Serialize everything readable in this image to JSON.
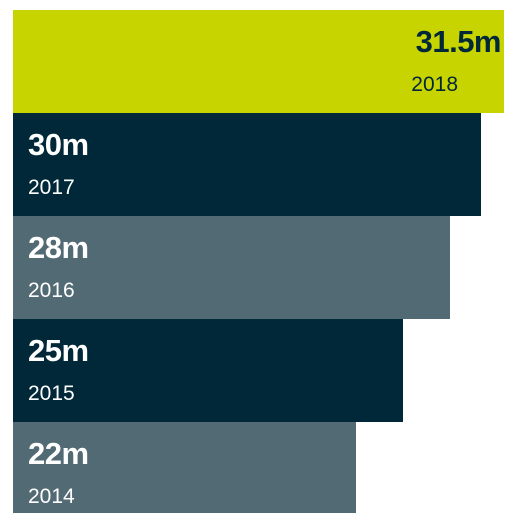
{
  "chart_data": {
    "type": "bar",
    "orientation": "horizontal",
    "categories": [
      "2018",
      "2017",
      "2016",
      "2015",
      "2014"
    ],
    "values": [
      31.5,
      30,
      28,
      25,
      22
    ],
    "value_labels": [
      "31.5m",
      "30m",
      "28m",
      "25m",
      "22m"
    ],
    "title": "",
    "xlabel": "",
    "ylabel": "",
    "unit": "m",
    "xlim": [
      0,
      32
    ],
    "grid": false,
    "colors": [
      "#c8d400",
      "#002838",
      "#526a74",
      "#002838",
      "#526a74"
    ],
    "text_colors": [
      "#002838",
      "#ffffff",
      "#ffffff",
      "#ffffff",
      "#ffffff"
    ],
    "label_colors": [
      "#002838",
      "#ffffff",
      "#ffffff",
      "#ffffff",
      "#ffffff"
    ]
  }
}
